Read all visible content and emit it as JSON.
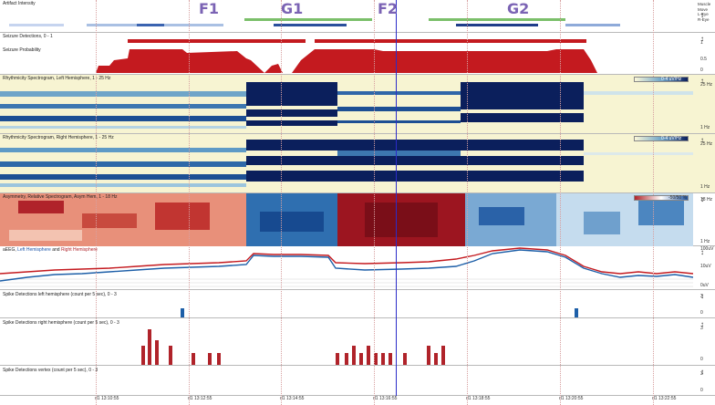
{
  "markers": [
    "F1",
    "G1",
    "F2",
    "G2"
  ],
  "panels": {
    "artifact": {
      "title": "Artifact Intensity",
      "legend": [
        "Muscle",
        "Move",
        "L-Eye",
        "R-Eye"
      ]
    },
    "seizure_det": {
      "title": "Seizure Detections, 0 - 1",
      "ticks": [
        "1",
        "0"
      ]
    },
    "seizure_prob": {
      "title": "Seizure Probability",
      "ticks": [
        "1",
        "0.5",
        "0"
      ]
    },
    "spec_left": {
      "title": "Rhythmicity Spectrogram, Left Hemisphere, 1 - 25 Hz",
      "colorbar": "0-4 uV/Hz",
      "ticks": [
        "25 Hz",
        "1 Hz"
      ]
    },
    "spec_right": {
      "title": "Rhythmicity Spectrogram, Right Hemisphere, 1 - 25 Hz",
      "colorbar": "0-4 uV/Hz",
      "ticks": [
        "25 Hz",
        "1 Hz"
      ]
    },
    "asym": {
      "title": "Asymmetry, Relative Spectrogram, Asym Hem, 1 - 18 Hz",
      "colorbar": "-50/50 %",
      "ticks": [
        "18 Hz",
        "1 Hz"
      ]
    },
    "aeeg": {
      "title_prefix": "aEEG, ",
      "left": "Left Hemisphere",
      "and": " and ",
      "right": "Right Hemisphere",
      "ticks": [
        "100uV",
        "10uV",
        "0uV"
      ]
    },
    "spike_left": {
      "title": "Spike Detections left hemisphere (count per 5 sec), 0 - 3",
      "ticks": [
        "3",
        "0"
      ]
    },
    "spike_right": {
      "title": "Spike Detections right hemisphere (count per 5 sec), 0 - 3",
      "ticks": [
        "3",
        "0"
      ]
    },
    "spike_vertex": {
      "title": "Spike Detections vertex (count per 5 sec), 0 - 3",
      "ticks": [
        "3",
        "0"
      ]
    }
  },
  "time_labels": [
    "d1 13:10:55",
    "d1 13:12:55",
    "d1 13:14:55",
    "d1 13:16:55",
    "d1 13:18:55",
    "d1 13:20:55",
    "d1 13:22:55"
  ],
  "colors": {
    "red": "#c41a1f",
    "blue": "#1d5fa8",
    "navy": "#0b1f5c",
    "cursor": "#2b2cc8"
  }
}
